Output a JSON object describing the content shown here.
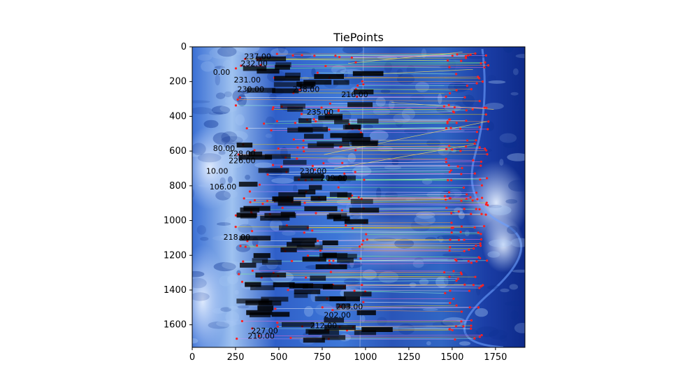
{
  "chart_data": {
    "type": "scatter",
    "title": "TiePoints",
    "xlabel": "",
    "ylabel": "",
    "xlim": [
      0,
      1920
    ],
    "ylim": [
      1730,
      0
    ],
    "x_ticks": [
      0,
      250,
      500,
      750,
      1000,
      1250,
      1500,
      1750
    ],
    "y_ticks": [
      0,
      200,
      400,
      600,
      800,
      1000,
      1200,
      1400,
      1600
    ],
    "grid": false,
    "legend": "none",
    "background_image": "blue false-color satellite image of mountainous terrain with rivers",
    "marker_color": "#ff2020",
    "point_labels": [
      {
        "text": "237.00",
        "x": 300,
        "y": 70
      },
      {
        "text": "232.00",
        "x": 280,
        "y": 110
      },
      {
        "text": "0.00",
        "x": 120,
        "y": 160
      },
      {
        "text": "231.00",
        "x": 240,
        "y": 205
      },
      {
        "text": "230.00",
        "x": 260,
        "y": 260
      },
      {
        "text": "238.00",
        "x": 580,
        "y": 260
      },
      {
        "text": "216.00",
        "x": 860,
        "y": 290
      },
      {
        "text": "235.00",
        "x": 660,
        "y": 390
      },
      {
        "text": "80.00",
        "x": 120,
        "y": 600
      },
      {
        "text": "228.00",
        "x": 210,
        "y": 630
      },
      {
        "text": "226.00",
        "x": 210,
        "y": 670
      },
      {
        "text": "10.00",
        "x": 80,
        "y": 730
      },
      {
        "text": "230.00",
        "x": 620,
        "y": 730
      },
      {
        "text": "209.00",
        "x": 740,
        "y": 770
      },
      {
        "text": "106.00",
        "x": 100,
        "y": 820
      },
      {
        "text": "218.00",
        "x": 180,
        "y": 1110
      },
      {
        "text": "203.00",
        "x": 830,
        "y": 1510
      },
      {
        "text": "202.00",
        "x": 760,
        "y": 1560
      },
      {
        "text": "210.00",
        "x": 320,
        "y": 1680
      },
      {
        "text": "212.00",
        "x": 680,
        "y": 1620
      },
      {
        "text": "227.00",
        "x": 340,
        "y": 1650
      }
    ],
    "tie_lines": [
      {
        "x1": 900,
        "y1": 95,
        "x2": 1560,
        "y2": 30
      },
      {
        "x1": 980,
        "y1": 160,
        "x2": 1620,
        "y2": 130
      },
      {
        "x1": 1150,
        "y1": 320,
        "x2": 1740,
        "y2": 360
      },
      {
        "x1": 760,
        "y1": 620,
        "x2": 1700,
        "y2": 430
      },
      {
        "x1": 820,
        "y1": 700,
        "x2": 1640,
        "y2": 560
      }
    ]
  }
}
